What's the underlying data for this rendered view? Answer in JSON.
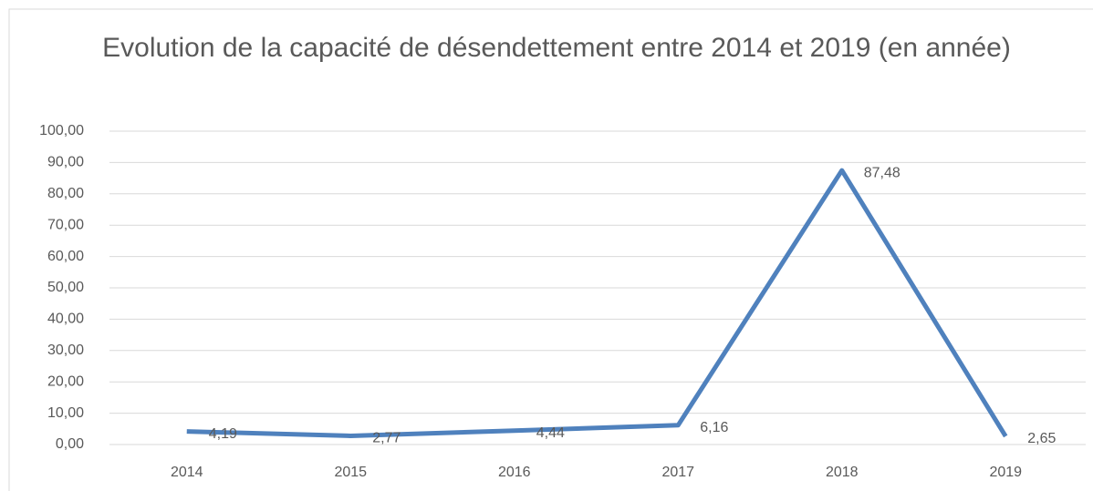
{
  "chart_data": {
    "type": "line",
    "title": "Evolution de la capacité de désendettement entre 2014 et 2019 (en année)",
    "categories": [
      "2014",
      "2015",
      "2016",
      "2017",
      "2018",
      "2019"
    ],
    "values": [
      4.19,
      2.77,
      4.44,
      6.16,
      87.48,
      2.65
    ],
    "value_labels": [
      "4,19",
      "2,77",
      "4,44",
      "6,16",
      "87,48",
      "2,65"
    ],
    "color": "#4f81bd",
    "ylim": [
      0,
      100
    ],
    "yticks": [
      {
        "value": 0,
        "label": "0,00"
      },
      {
        "value": 10,
        "label": "10,00"
      },
      {
        "value": 20,
        "label": "20,00"
      },
      {
        "value": 30,
        "label": "30,00"
      },
      {
        "value": 40,
        "label": "40,00"
      },
      {
        "value": 50,
        "label": "50,00"
      },
      {
        "value": 60,
        "label": "60,00"
      },
      {
        "value": 70,
        "label": "70,00"
      },
      {
        "value": 80,
        "label": "80,00"
      },
      {
        "value": 90,
        "label": "90,00"
      },
      {
        "value": 100,
        "label": "100,00"
      }
    ],
    "grid": true
  }
}
